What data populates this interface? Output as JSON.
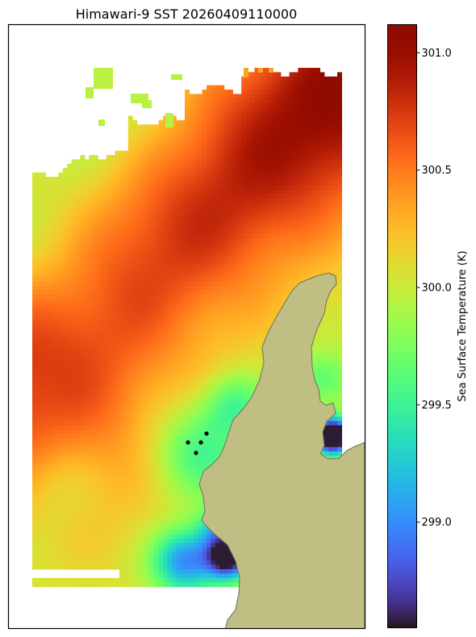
{
  "chart_data": {
    "type": "heatmap",
    "title": "Himawari-9 SST 20260409110000",
    "colorbar": {
      "label": "Sea Surface Temperature (K)",
      "range": [
        298.55,
        301.12
      ],
      "ticks": [
        299.0,
        299.5,
        300.0,
        300.5,
        301.0
      ],
      "tick_labels": [
        "299.0",
        "299.5",
        "300.0",
        "300.5",
        "301.0"
      ],
      "colormap": "turbo"
    },
    "field_description_values": {
      "background_min": 299.95,
      "ridge_max": 301.05,
      "cool_patch_min": 298.9,
      "cold_channel_min": 298.6
    },
    "markers": [
      {
        "name": "station-1"
      },
      {
        "name": "station-2"
      },
      {
        "name": "station-3"
      },
      {
        "name": "station-4"
      }
    ],
    "colors": {
      "land": "#bfbf84",
      "land_edge": "#6f6f60",
      "marker": "#000000"
    }
  }
}
